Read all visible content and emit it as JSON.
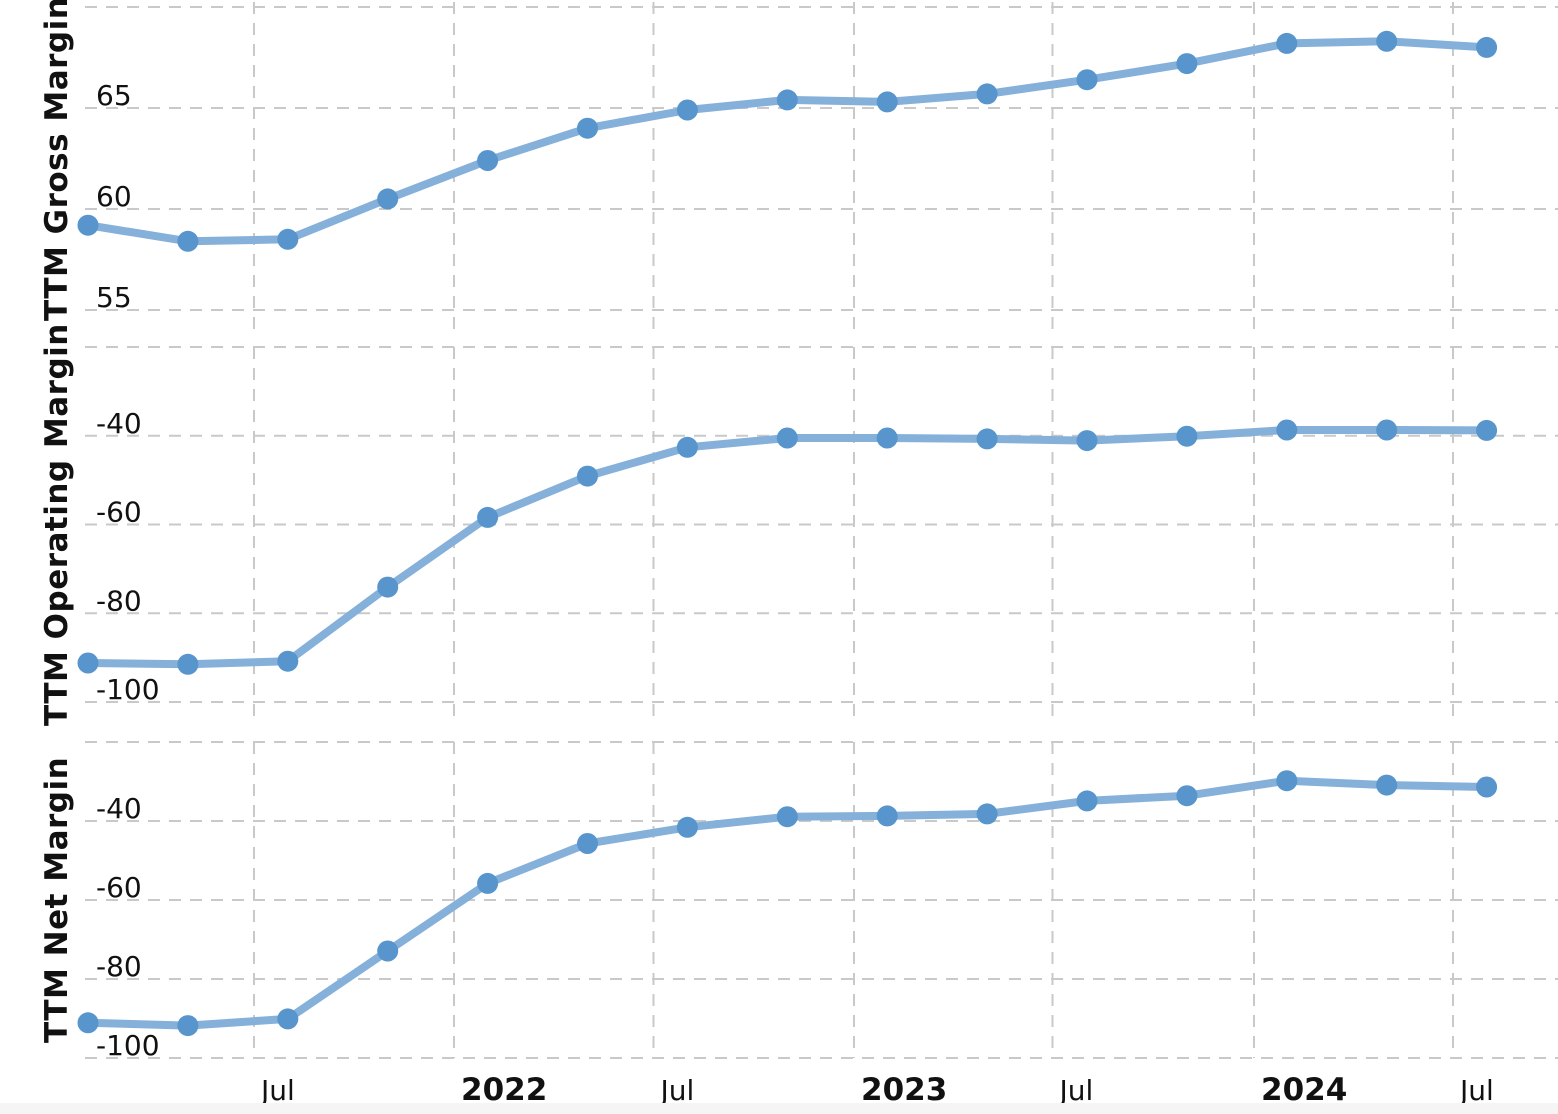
{
  "styles": {
    "background": "#ffffff",
    "grid_color": "#c9c9c9",
    "line_color": "#84b0da",
    "marker_color": "#5795cc",
    "text_color": "#111111",
    "footer_strip_color": "#f5f5f6"
  },
  "xaxis": {
    "ticks": [
      {
        "label": "Jul",
        "bold": false
      },
      {
        "label": "2022",
        "bold": true
      },
      {
        "label": "Jul",
        "bold": false
      },
      {
        "label": "2023",
        "bold": true
      },
      {
        "label": "Jul",
        "bold": false
      },
      {
        "label": "2024",
        "bold": true
      },
      {
        "label": "Jul",
        "bold": false
      }
    ]
  },
  "chart_data": [
    {
      "type": "line",
      "title": "",
      "xlabel": "",
      "ylabel": "TTM Gross Margin",
      "legend": "none",
      "grid": "dashed",
      "ylim": [
        53.7,
        70.3
      ],
      "yticks": [
        {
          "value": 70,
          "label": ""
        },
        {
          "value": 65,
          "label": "65"
        },
        {
          "value": 60,
          "label": "60"
        },
        {
          "value": 55,
          "label": "55"
        }
      ],
      "x": [
        "2021-01",
        "2021-04",
        "2021-07",
        "2021-10",
        "2022-01",
        "2022-04",
        "2022-07",
        "2022-10",
        "2023-01",
        "2023-04",
        "2023-07",
        "2023-10",
        "2024-01",
        "2024-04",
        "2024-07"
      ],
      "values": [
        59.2,
        58.4,
        58.5,
        60.5,
        62.4,
        64.0,
        64.9,
        65.4,
        65.3,
        65.7,
        66.4,
        67.2,
        68.2,
        68.3,
        68.0
      ]
    },
    {
      "type": "line",
      "title": "",
      "xlabel": "",
      "ylabel": "TTM Operating Margin",
      "legend": "none",
      "grid": "dashed",
      "ylim": [
        -103.2,
        -20.0
      ],
      "yticks": [
        {
          "value": -20,
          "label": ""
        },
        {
          "value": -40,
          "label": "-40"
        },
        {
          "value": -60,
          "label": "-60"
        },
        {
          "value": -80,
          "label": "-80"
        },
        {
          "value": -100,
          "label": "-100"
        }
      ],
      "x": [
        "2021-01",
        "2021-04",
        "2021-07",
        "2021-10",
        "2022-01",
        "2022-04",
        "2022-07",
        "2022-10",
        "2023-01",
        "2023-04",
        "2023-07",
        "2023-10",
        "2024-01",
        "2024-04",
        "2024-07"
      ],
      "values": [
        -91.2,
        -91.5,
        -90.8,
        -74.1,
        -58.4,
        -49.1,
        -42.6,
        -40.5,
        -40.5,
        -40.7,
        -41.1,
        -40.1,
        -38.7,
        -38.7,
        -38.8
      ]
    },
    {
      "type": "line",
      "title": "",
      "xlabel": "",
      "ylabel": "TTM Net Margin",
      "legend": "none",
      "grid": "dashed",
      "ylim": [
        -100.0,
        -20.0
      ],
      "yticks": [
        {
          "value": -20,
          "label": ""
        },
        {
          "value": -40,
          "label": "-40"
        },
        {
          "value": -60,
          "label": "-60"
        },
        {
          "value": -80,
          "label": "-80"
        },
        {
          "value": -100,
          "label": "-100"
        }
      ],
      "x": [
        "2021-01",
        "2021-04",
        "2021-07",
        "2021-10",
        "2022-01",
        "2022-04",
        "2022-07",
        "2022-10",
        "2023-01",
        "2023-04",
        "2023-07",
        "2023-10",
        "2024-01",
        "2024-04",
        "2024-07"
      ],
      "values": [
        -91.1,
        -91.8,
        -90.1,
        -72.9,
        -55.8,
        -45.7,
        -41.6,
        -38.9,
        -38.7,
        -38.2,
        -34.9,
        -33.6,
        -29.8,
        -30.9,
        -31.4
      ]
    }
  ]
}
